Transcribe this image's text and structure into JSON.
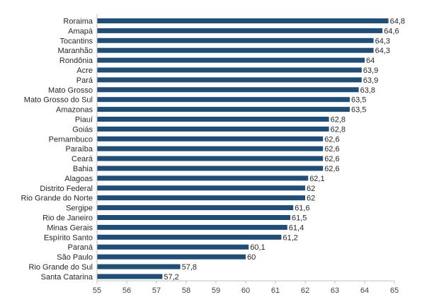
{
  "chart_data": {
    "type": "bar",
    "orientation": "horizontal",
    "title": "",
    "xlabel": "",
    "ylabel": "",
    "categories": [
      "Roraima",
      "Amapá",
      "Tocantins",
      "Maranhão",
      "Rondônia",
      "Acre",
      "Pará",
      "Mato Grosso",
      "Mato Grosso do Sul",
      "Amazonas",
      "Piauí",
      "Goiás",
      "Pernambuco",
      "Paraíba",
      "Ceará",
      "Bahia",
      "Alagoas",
      "Distrito Federal",
      "Rio Grande do Norte",
      "Sergipe",
      "Rio de Janeiro",
      "Minas Gerais",
      "Espírito Santo",
      "Paraná",
      "São Paulo",
      "Rio Grande do Sul",
      "Santa Catarina"
    ],
    "values": [
      64.8,
      64.6,
      64.3,
      64.3,
      64,
      63.9,
      63.9,
      63.8,
      63.5,
      63.5,
      62.8,
      62.8,
      62.6,
      62.6,
      62.6,
      62.6,
      62.1,
      62,
      62,
      61.6,
      61.5,
      61.4,
      61.2,
      60.1,
      60,
      57.8,
      57.2
    ],
    "value_labels": [
      "64,8",
      "64,6",
      "64,3",
      "64,3",
      "64",
      "63,9",
      "63,9",
      "63,8",
      "63,5",
      "63,5",
      "62,8",
      "62,8",
      "62,6",
      "62,6",
      "62,6",
      "62,6",
      "62,1",
      "62",
      "62",
      "61,6",
      "61,5",
      "61,4",
      "61,2",
      "60,1",
      "60",
      "57,8",
      "57,2"
    ],
    "xlim": [
      55,
      65
    ],
    "ticks": [
      55,
      56,
      57,
      58,
      59,
      60,
      61,
      62,
      63,
      64,
      65
    ],
    "tick_labels": [
      "55",
      "56",
      "57",
      "58",
      "59",
      "60",
      "61",
      "62",
      "63",
      "64",
      "65"
    ],
    "bar_color": "#1f4e79",
    "axis_color": "#bfbfbf",
    "grid": false,
    "legend": "none"
  }
}
